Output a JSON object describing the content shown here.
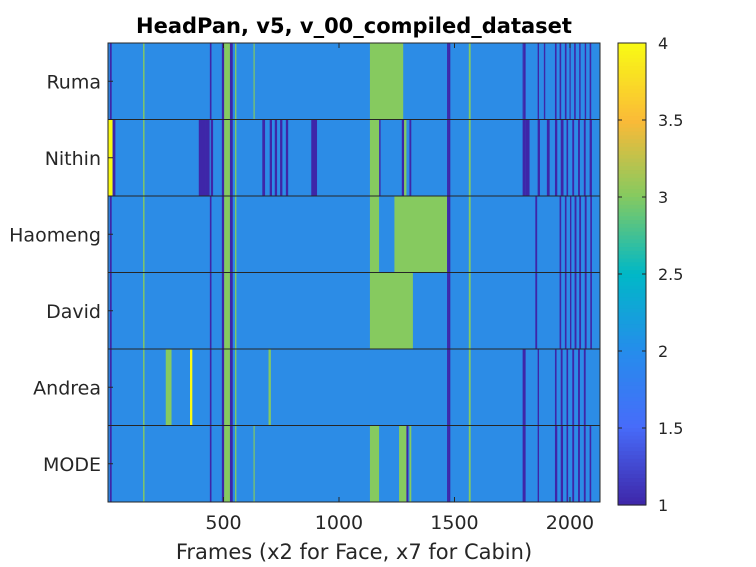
{
  "chart_data": {
    "type": "heatmap",
    "title": "HeadPan, v5, v_00_compiled_dataset",
    "xlabel": "Frames (x2 for Face, x7 for Cabin)",
    "ylabel": "",
    "xlim": [
      0,
      2130
    ],
    "xticks": [
      500,
      1000,
      1500,
      2000
    ],
    "rows": [
      "Ruma",
      "Nithin",
      "Haomeng",
      "David",
      "Andrea",
      "MODE"
    ],
    "background_value": 2,
    "colorbar": {
      "min": 1,
      "max": 4,
      "ticks": [
        1,
        1.5,
        2,
        2.5,
        3,
        3.5,
        4
      ]
    },
    "cells": [
      {
        "row": "Ruma",
        "segments": [
          [
            8,
            16,
            1
          ],
          [
            152,
            158,
            3
          ],
          [
            441,
            448,
            1
          ],
          [
            493,
            503,
            1
          ],
          [
            503,
            528,
            3
          ],
          [
            528,
            540,
            1
          ],
          [
            550,
            556,
            3
          ],
          [
            630,
            635,
            3
          ],
          [
            1134,
            1278,
            3
          ],
          [
            1468,
            1476,
            1
          ],
          [
            1476,
            1482,
            1
          ],
          [
            1562,
            1570,
            3
          ],
          [
            1795,
            1800,
            1
          ],
          [
            1800,
            1808,
            1
          ],
          [
            1860,
            1866,
            1
          ],
          [
            1887,
            1893,
            1
          ],
          [
            1935,
            1942,
            1
          ],
          [
            1955,
            1962,
            1
          ],
          [
            1978,
            1985,
            1
          ],
          [
            1998,
            2003,
            1
          ],
          [
            2018,
            2025,
            1
          ],
          [
            2040,
            2046,
            1
          ],
          [
            2064,
            2070,
            1
          ],
          [
            2085,
            2092,
            1
          ]
        ]
      },
      {
        "row": "Nithin",
        "segments": [
          [
            0,
            20,
            4
          ],
          [
            20,
            32,
            1
          ],
          [
            152,
            158,
            3
          ],
          [
            393,
            420,
            1
          ],
          [
            420,
            440,
            1
          ],
          [
            445,
            455,
            1
          ],
          [
            493,
            503,
            1
          ],
          [
            503,
            528,
            3
          ],
          [
            528,
            540,
            1
          ],
          [
            550,
            556,
            3
          ],
          [
            668,
            680,
            1
          ],
          [
            700,
            710,
            1
          ],
          [
            722,
            732,
            1
          ],
          [
            745,
            755,
            1
          ],
          [
            770,
            780,
            1
          ],
          [
            880,
            905,
            1
          ],
          [
            1134,
            1174,
            3
          ],
          [
            1174,
            1180,
            1
          ],
          [
            1272,
            1282,
            1
          ],
          [
            1282,
            1292,
            3
          ],
          [
            1305,
            1313,
            1
          ],
          [
            1468,
            1476,
            1
          ],
          [
            1476,
            1482,
            1
          ],
          [
            1562,
            1570,
            3
          ],
          [
            1795,
            1808,
            1
          ],
          [
            1808,
            1825,
            1
          ],
          [
            1860,
            1870,
            1
          ],
          [
            1900,
            1912,
            1
          ],
          [
            1935,
            1945,
            1
          ],
          [
            1960,
            1972,
            1
          ],
          [
            1985,
            1992,
            1
          ],
          [
            2010,
            2018,
            1
          ],
          [
            2035,
            2043,
            1
          ],
          [
            2060,
            2068,
            1
          ],
          [
            2085,
            2095,
            1
          ]
        ]
      },
      {
        "row": "Haomeng",
        "segments": [
          [
            8,
            16,
            1
          ],
          [
            152,
            158,
            3
          ],
          [
            441,
            448,
            1
          ],
          [
            493,
            503,
            1
          ],
          [
            503,
            528,
            3
          ],
          [
            528,
            540,
            1
          ],
          [
            550,
            556,
            3
          ],
          [
            1134,
            1174,
            3
          ],
          [
            1174,
            1240,
            2
          ],
          [
            1240,
            1468,
            3
          ],
          [
            1468,
            1476,
            1
          ],
          [
            1476,
            1482,
            1
          ],
          [
            1562,
            1570,
            3
          ],
          [
            1850,
            1858,
            1
          ],
          [
            1955,
            1962,
            1
          ],
          [
            1978,
            1985,
            1
          ],
          [
            2000,
            2006,
            1
          ],
          [
            2020,
            2028,
            1
          ],
          [
            2040,
            2048,
            1
          ],
          [
            2064,
            2072,
            1
          ],
          [
            2088,
            2095,
            1
          ]
        ]
      },
      {
        "row": "David",
        "segments": [
          [
            8,
            16,
            1
          ],
          [
            152,
            158,
            3
          ],
          [
            441,
            448,
            1
          ],
          [
            493,
            503,
            1
          ],
          [
            503,
            528,
            3
          ],
          [
            528,
            540,
            1
          ],
          [
            550,
            556,
            3
          ],
          [
            1134,
            1320,
            3
          ],
          [
            1468,
            1476,
            1
          ],
          [
            1476,
            1482,
            1
          ],
          [
            1562,
            1570,
            3
          ],
          [
            1850,
            1858,
            1
          ],
          [
            1955,
            1962,
            1
          ],
          [
            1978,
            1985,
            1
          ],
          [
            2000,
            2006,
            1
          ],
          [
            2020,
            2028,
            1
          ],
          [
            2040,
            2048,
            1
          ],
          [
            2064,
            2072,
            1
          ],
          [
            2088,
            2095,
            1
          ]
        ]
      },
      {
        "row": "Andrea",
        "segments": [
          [
            8,
            16,
            1
          ],
          [
            152,
            158,
            3
          ],
          [
            250,
            275,
            3
          ],
          [
            355,
            365,
            4
          ],
          [
            441,
            448,
            1
          ],
          [
            493,
            503,
            1
          ],
          [
            503,
            528,
            3
          ],
          [
            528,
            540,
            1
          ],
          [
            550,
            556,
            3
          ],
          [
            695,
            705,
            3
          ],
          [
            1468,
            1476,
            1
          ],
          [
            1476,
            1482,
            1
          ],
          [
            1562,
            1570,
            3
          ],
          [
            1795,
            1808,
            1
          ],
          [
            1860,
            1866,
            1
          ],
          [
            1935,
            1942,
            1
          ],
          [
            1960,
            1968,
            1
          ],
          [
            1985,
            1992,
            1
          ],
          [
            2010,
            2018,
            1
          ],
          [
            2035,
            2043,
            1
          ],
          [
            2060,
            2068,
            1
          ]
        ]
      },
      {
        "row": "MODE",
        "segments": [
          [
            8,
            16,
            1
          ],
          [
            152,
            158,
            3
          ],
          [
            441,
            448,
            1
          ],
          [
            493,
            503,
            1
          ],
          [
            503,
            528,
            3
          ],
          [
            528,
            540,
            1
          ],
          [
            550,
            556,
            3
          ],
          [
            630,
            635,
            3
          ],
          [
            1134,
            1174,
            3
          ],
          [
            1174,
            1260,
            2
          ],
          [
            1260,
            1292,
            3
          ],
          [
            1292,
            1300,
            1
          ],
          [
            1305,
            1313,
            3
          ],
          [
            1468,
            1476,
            1
          ],
          [
            1476,
            1482,
            1
          ],
          [
            1562,
            1570,
            3
          ],
          [
            1795,
            1808,
            1
          ],
          [
            1860,
            1866,
            1
          ],
          [
            1935,
            1945,
            1
          ],
          [
            1960,
            1970,
            1
          ],
          [
            1985,
            1992,
            1
          ],
          [
            2010,
            2018,
            1
          ],
          [
            2035,
            2043,
            1
          ],
          [
            2060,
            2068,
            1
          ],
          [
            2085,
            2092,
            1
          ]
        ]
      }
    ]
  }
}
